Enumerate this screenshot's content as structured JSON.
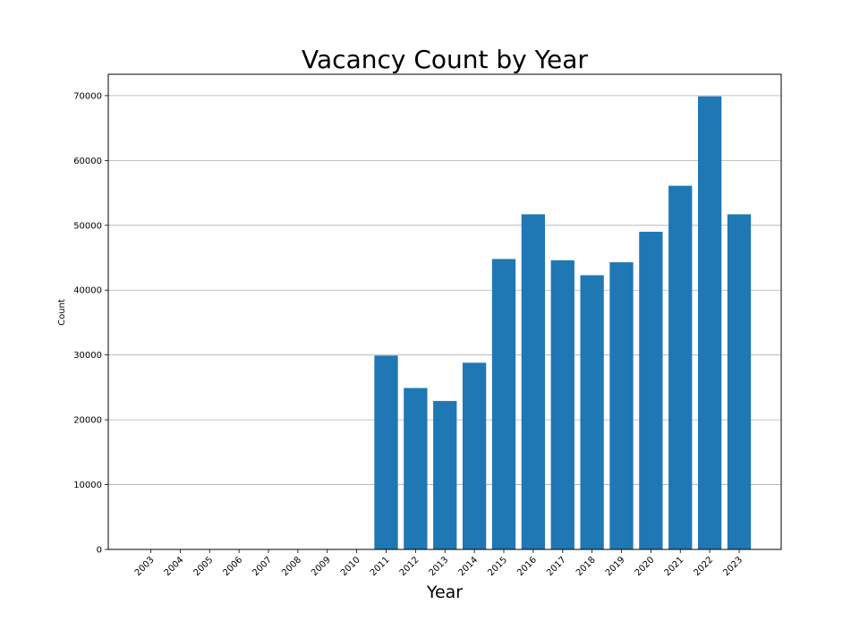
{
  "chart_data": {
    "type": "bar",
    "title": "Vacancy Count by Year",
    "xlabel": "Year",
    "ylabel": "Count",
    "categories": [
      "2003",
      "2004",
      "2005",
      "2006",
      "2007",
      "2008",
      "2009",
      "2010",
      "2011",
      "2012",
      "2013",
      "2014",
      "2015",
      "2016",
      "2017",
      "2018",
      "2019",
      "2020",
      "2021",
      "2022",
      "2023"
    ],
    "values": [
      0,
      0,
      0,
      0,
      0,
      0,
      0,
      0,
      29900,
      24900,
      22900,
      28800,
      44800,
      51700,
      44600,
      42300,
      44300,
      49000,
      56100,
      69900,
      51700
    ],
    "ylim": [
      0,
      73300
    ],
    "yticks": [
      0,
      10000,
      20000,
      30000,
      40000,
      50000,
      60000,
      70000
    ],
    "ytick_labels": [
      "0",
      "10000",
      "20000",
      "30000",
      "40000",
      "50000",
      "60000",
      "70000"
    ],
    "grid": "y-major",
    "legend": "none",
    "colors": {
      "bar": "#1f77b4",
      "grid": "#b0b0b0",
      "axes": "#000000"
    }
  }
}
